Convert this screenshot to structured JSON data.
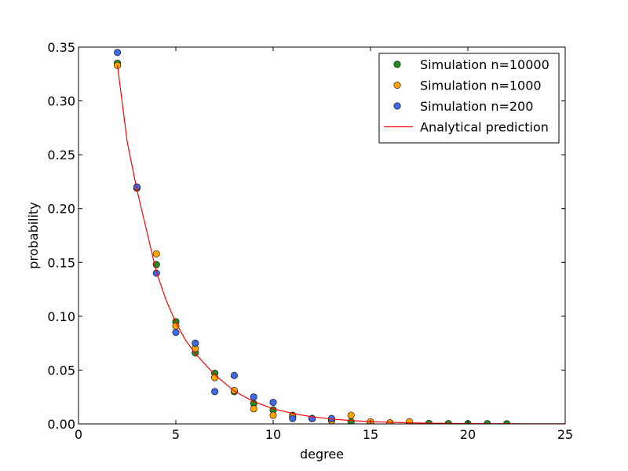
{
  "chart_data": {
    "type": "scatter",
    "title": "",
    "xlabel": "degree",
    "ylabel": "probability",
    "xlim": [
      0,
      25
    ],
    "ylim": [
      0,
      0.35
    ],
    "xticks": [
      0,
      5,
      10,
      15,
      20,
      25
    ],
    "xtick_labels": [
      "0",
      "5",
      "10",
      "15",
      "20",
      "25"
    ],
    "yticks": [
      0,
      0.05,
      0.1,
      0.15,
      0.2,
      0.25,
      0.3,
      0.35
    ],
    "ytick_labels": [
      "0.00",
      "0.05",
      "0.10",
      "0.15",
      "0.20",
      "0.25",
      "0.30",
      "0.35"
    ],
    "grid": false,
    "legend_position": "top-right",
    "series": [
      {
        "name": "Simulation n=10000",
        "kind": "scatter",
        "color": "#228b22",
        "x": [
          2,
          3,
          4,
          5,
          6,
          7,
          8,
          9,
          10,
          11,
          12,
          13,
          14,
          15,
          16,
          17,
          18,
          19,
          20,
          21,
          22
        ],
        "y": [
          0.335,
          0.22,
          0.148,
          0.095,
          0.066,
          0.047,
          0.03,
          0.019,
          0.013,
          0.008,
          0.005,
          0.003,
          0.002,
          0.0015,
          0.001,
          0.0007,
          0.0005,
          0.0003,
          0.0002,
          0.0002,
          0.0001
        ]
      },
      {
        "name": "Simulation n=1000",
        "kind": "scatter",
        "color": "#ffa500",
        "x": [
          2,
          3,
          4,
          5,
          6,
          7,
          8,
          9,
          10,
          11,
          12,
          13,
          14,
          15,
          16,
          17
        ],
        "y": [
          0.333,
          0.219,
          0.158,
          0.091,
          0.07,
          0.043,
          0.031,
          0.014,
          0.008,
          0.007,
          0.005,
          0.003,
          0.008,
          0.002,
          0.001,
          0.002
        ]
      },
      {
        "name": "Simulation n=200",
        "kind": "scatter",
        "color": "#4169e1",
        "x": [
          2,
          3,
          4,
          5,
          6,
          7,
          8,
          9,
          10,
          11,
          12,
          13
        ],
        "y": [
          0.345,
          0.22,
          0.14,
          0.085,
          0.075,
          0.03,
          0.045,
          0.025,
          0.02,
          0.005,
          0.005,
          0.005
        ]
      },
      {
        "name": "Analytical prediction",
        "kind": "line",
        "color": "#ff0000",
        "x": [
          2,
          2.5,
          3,
          3.5,
          4,
          4.5,
          5,
          5.5,
          6,
          7,
          8,
          9,
          10,
          11,
          12,
          13,
          14,
          15,
          16,
          17,
          18,
          19,
          20,
          21,
          22,
          23,
          24,
          25
        ],
        "y": [
          0.3333,
          0.2622,
          0.2175,
          0.1795,
          0.1412,
          0.1149,
          0.0941,
          0.0778,
          0.0653,
          0.0456,
          0.0305,
          0.0207,
          0.0141,
          0.0097,
          0.0066,
          0.0045,
          0.0031,
          0.0021,
          0.0015,
          0.001,
          0.0007,
          0.0005,
          0.0003,
          0.0002,
          0.0002,
          0.0001,
          0.0001,
          0.0001
        ]
      }
    ]
  }
}
